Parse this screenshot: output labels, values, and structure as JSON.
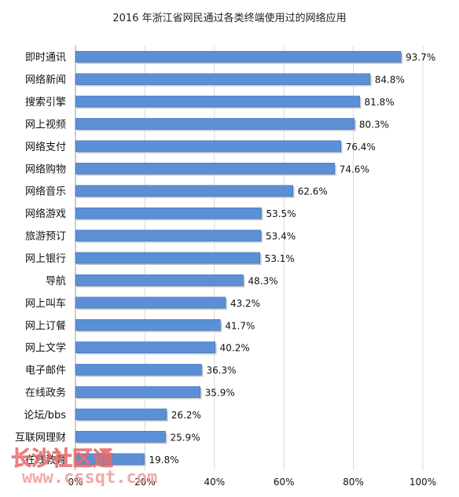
{
  "chart_data": {
    "type": "bar",
    "orientation": "horizontal",
    "title": "2016 年浙江省网民通过各类终端使用过的网络应用",
    "categories": [
      "即时通讯",
      "网络新闻",
      "搜索引擎",
      "网上视频",
      "网络支付",
      "网络购物",
      "网络音乐",
      "网络游戏",
      "旅游预订",
      "网上银行",
      "导航",
      "网上叫车",
      "网上订餐",
      "网上文学",
      "电子邮件",
      "在线政务",
      "论坛/bbs",
      "互联网理财",
      "在线教育"
    ],
    "values": [
      93.7,
      84.8,
      81.8,
      80.3,
      76.4,
      74.6,
      62.6,
      53.5,
      53.4,
      53.1,
      48.3,
      43.2,
      41.7,
      40.2,
      36.3,
      35.9,
      26.2,
      25.9,
      19.8
    ],
    "value_labels": [
      "93.7%",
      "84.8%",
      "81.8%",
      "80.3%",
      "76.4%",
      "74.6%",
      "62.6%",
      "53.5%",
      "53.4%",
      "53.1%",
      "48.3%",
      "43.2%",
      "41.7%",
      "40.2%",
      "36.3%",
      "35.9%",
      "26.2%",
      "25.9%",
      "19.8%"
    ],
    "xlim": [
      0,
      100
    ],
    "x_ticks": [
      "0%",
      "20%",
      "40%",
      "60%",
      "80%",
      "100%"
    ],
    "x_tick_values": [
      0,
      20,
      40,
      60,
      80,
      100
    ],
    "grid": true,
    "bar_color": "#5b8fd6"
  },
  "watermark": {
    "text_cn": "长沙社区通",
    "text_url": "www.cssqt.com"
  }
}
